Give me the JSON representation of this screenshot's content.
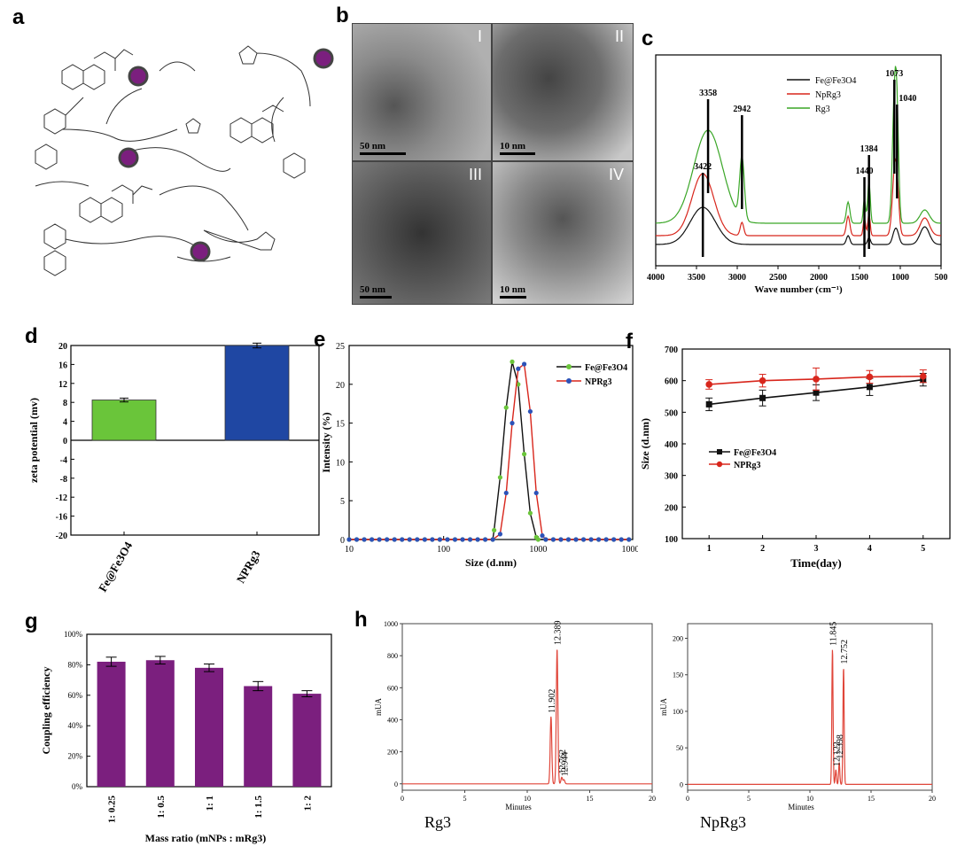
{
  "labels": {
    "a": "a",
    "b": "b",
    "c": "c",
    "d": "d",
    "e": "e",
    "f": "f",
    "g": "g",
    "h": "h"
  },
  "tem": {
    "panels": [
      {
        "label": "I",
        "scale": "50 nm",
        "tone": "#8a8a8a"
      },
      {
        "label": "II",
        "scale": "10 nm",
        "tone": "#7a7a7a"
      },
      {
        "label": "III",
        "scale": "50 nm",
        "tone": "#4c4c4c"
      },
      {
        "label": "IV",
        "scale": "10 nm",
        "tone": "#8f8f8f"
      }
    ]
  },
  "colors": {
    "black": "#111111",
    "red": "#d8261c",
    "green": "#3aa627",
    "blue": "#1f47a3",
    "lime": "#6ac53a",
    "purple": "#7b1f7e",
    "hplc": "#e0463a",
    "blue_dot": "#2c52b8",
    "green_dot": "#6ac53a"
  },
  "chart_data": [
    {
      "id": "c",
      "type": "line",
      "xlabel": "Wave number (cm⁻¹)",
      "xlim": [
        4000,
        500
      ],
      "xticks": [
        4000,
        3500,
        3000,
        2500,
        2000,
        1500,
        1000,
        500
      ],
      "series": [
        {
          "name": "Fe@Fe3O4",
          "color": "black"
        },
        {
          "name": "NpRg3",
          "color": "red"
        },
        {
          "name": "Rg3",
          "color": "green"
        }
      ],
      "annotations": [
        {
          "text": "3358",
          "x": 3358
        },
        {
          "text": "3422",
          "x": 3422
        },
        {
          "text": "2942",
          "x": 2942
        },
        {
          "text": "1440",
          "x": 1440
        },
        {
          "text": "1384",
          "x": 1384
        },
        {
          "text": "1073",
          "x": 1073
        },
        {
          "text": "1040",
          "x": 1040
        }
      ]
    },
    {
      "id": "d",
      "type": "bar",
      "ylabel": "zeta potential (mv)",
      "ylim": [
        -20,
        20
      ],
      "yticks": [
        20,
        16,
        12,
        8,
        4,
        0,
        -4,
        -8,
        -12,
        -16,
        -20
      ],
      "categories": [
        "Fe@Fe3O4",
        "NPRg3"
      ],
      "values": [
        8.5,
        20.0
      ],
      "errors": [
        0.4,
        0.5
      ],
      "bar_colors": [
        "lime",
        "blue"
      ]
    },
    {
      "id": "e",
      "type": "line",
      "xlabel": "Size (d.nm)",
      "ylabel": "Intensity (%)",
      "xscale": "log",
      "xlim": [
        10,
        10000
      ],
      "ylim": [
        0,
        25
      ],
      "xticks": [
        10,
        100,
        1000,
        10000
      ],
      "yticks": [
        0,
        5,
        10,
        15,
        20,
        25
      ],
      "series": [
        {
          "name": "Fe@Fe3O4",
          "color": "black",
          "marker_color": "green_dot",
          "x": [
            342,
            396,
            459,
            531,
            615,
            712,
            825,
            955
          ],
          "y": [
            1.2,
            8.0,
            17.0,
            22.9,
            20.0,
            11.0,
            3.4,
            0.3
          ]
        },
        {
          "name": "NPRg3",
          "color": "red",
          "marker_color": "blue_dot",
          "x": [
            396,
            459,
            531,
            615,
            712,
            825,
            955,
            1106
          ],
          "y": [
            0.7,
            6.0,
            15.0,
            22.0,
            22.6,
            16.5,
            6.0,
            0.5
          ]
        }
      ]
    },
    {
      "id": "f",
      "type": "line",
      "xlabel": "Time(day)",
      "ylabel": "Size (d.nm)",
      "xlim": [
        0.5,
        5.5
      ],
      "ylim": [
        100,
        700
      ],
      "xticks": [
        1,
        2,
        3,
        4,
        5
      ],
      "yticks": [
        100,
        200,
        300,
        400,
        500,
        600,
        700
      ],
      "series": [
        {
          "name": "Fe@Fe3O4",
          "color": "black",
          "x": [
            1,
            2,
            3,
            4,
            5
          ],
          "y": [
            525,
            545,
            562,
            580,
            603
          ],
          "err": [
            20,
            25,
            25,
            27,
            20
          ]
        },
        {
          "name": "NPRg3",
          "color": "red",
          "x": [
            1,
            2,
            3,
            4,
            5
          ],
          "y": [
            588,
            600,
            605,
            612,
            614
          ],
          "err": [
            15,
            20,
            35,
            20,
            20
          ]
        }
      ]
    },
    {
      "id": "g",
      "type": "bar",
      "xlabel": "Mass ratio (mNPs : mRg3)",
      "ylabel": "Coupling efficiency",
      "ylim": [
        0,
        100
      ],
      "yticks": [
        "0%",
        "20%",
        "40%",
        "60%",
        "80%",
        "100%"
      ],
      "categories": [
        "1: 0.25",
        "1: 0.5",
        "1: 1",
        "1: 1.5",
        "1: 2"
      ],
      "values": [
        82,
        83,
        78,
        66,
        61
      ],
      "errors": [
        3,
        2.5,
        2.5,
        3,
        2
      ],
      "bar_color": "purple"
    },
    {
      "id": "h1",
      "type": "line",
      "title": "Rg3",
      "xlabel": "Minutes",
      "ylabel": "mUA",
      "xlim": [
        0,
        20
      ],
      "ylim": [
        -40,
        1000
      ],
      "xticks": [
        0,
        5,
        10,
        15,
        20
      ],
      "yticks": [
        0,
        200,
        400,
        600,
        800,
        1000
      ],
      "peaks": [
        {
          "label": "11.902",
          "x": 11.902,
          "y": 420
        },
        {
          "label": "12.389",
          "x": 12.389,
          "y": 845
        },
        {
          "label": "12.762",
          "x": 12.762,
          "y": 40
        },
        {
          "label": "12.944",
          "x": 12.944,
          "y": 25
        }
      ]
    },
    {
      "id": "h2",
      "type": "line",
      "title": "NpRg3",
      "xlabel": "Minutes",
      "ylabel": "mUA",
      "xlim": [
        0,
        20
      ],
      "ylim": [
        -8,
        220
      ],
      "xticks": [
        0,
        5,
        10,
        15,
        20
      ],
      "yticks": [
        0,
        50,
        100,
        150,
        200
      ],
      "peaks": [
        {
          "label": "11.845",
          "x": 11.845,
          "y": 185
        },
        {
          "label": "12.122",
          "x": 12.122,
          "y": 20
        },
        {
          "label": "12.398",
          "x": 12.398,
          "y": 30
        },
        {
          "label": "12.752",
          "x": 12.752,
          "y": 160
        }
      ]
    }
  ]
}
